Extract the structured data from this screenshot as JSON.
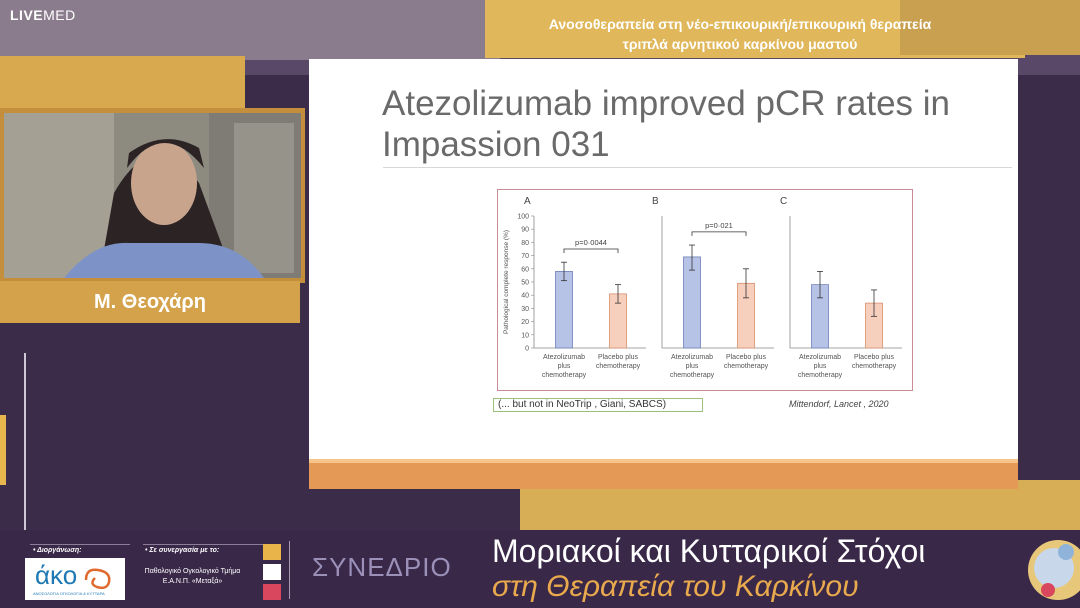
{
  "brand": {
    "live": "LIVE",
    "med": "MED"
  },
  "session_title": {
    "line1": "Ανοσοθεραπεία στη νέο-επικουρική/επικουρική θεραπεία",
    "line2": "τριπλά αρνητικού καρκίνου μαστού"
  },
  "speaker": {
    "name": "Μ. Θεοχάρη"
  },
  "slide": {
    "title": "Atezolizumab improved pCR rates in Impassion 031",
    "note": "(... but not in NeoTrip , Giani, SABCS)",
    "citation": "Mittendorf, Lancet , 2020"
  },
  "chart_data": [
    {
      "type": "bar",
      "panel": "A",
      "categories": [
        "Atezolizumab plus chemotherapy",
        "Placebo plus chemotherapy"
      ],
      "values": [
        58,
        41
      ],
      "error_low": [
        51,
        34
      ],
      "error_high": [
        65,
        48
      ],
      "annotation": "p=0·0044",
      "ylabel": "Pathological complete response (%)",
      "ylim": [
        0,
        100
      ],
      "yticks": [
        0,
        10,
        20,
        30,
        40,
        50,
        60,
        70,
        80,
        90,
        100
      ],
      "colors": [
        "#b7c3e6",
        "#f7cfbd"
      ]
    },
    {
      "type": "bar",
      "panel": "B",
      "categories": [
        "Atezolizumab plus chemotherapy",
        "Placebo plus chemotherapy"
      ],
      "values": [
        69,
        49
      ],
      "error_low": [
        59,
        38
      ],
      "error_high": [
        78,
        60
      ],
      "annotation": "p=0·021",
      "ylim": [
        0,
        100
      ],
      "colors": [
        "#b7c3e6",
        "#f7cfbd"
      ]
    },
    {
      "type": "bar",
      "panel": "C",
      "categories": [
        "Atezolizumab plus chemotherapy",
        "Placebo plus chemotherapy"
      ],
      "values": [
        48,
        34
      ],
      "error_low": [
        38,
        24
      ],
      "error_high": [
        58,
        44
      ],
      "annotation": "",
      "ylim": [
        0,
        100
      ],
      "colors": [
        "#b7c3e6",
        "#f7cfbd"
      ]
    }
  ],
  "footer": {
    "organizer_label": "• Διοργάνωση:",
    "collaboration_label": "• Σε συνεργασία με το:",
    "org_logo_text": "άκο",
    "org_logo_sub": "ΑΝΟΣΟΛΟΓΙΑ ΟΓΚΟΛΟΓΙΑ & ΚΥΤΤΑΡΑ",
    "collab_line1": "Παθολογικό Ογκολογικό Τμήμα",
    "collab_line2": "Ε.Α.Ν.Π. «Μεταξά»",
    "congress_word": "ΣΥΝΕΔΡΙΟ",
    "conf_title_line1": "Μοριακοί και Κυτταρικοί Στόχοι",
    "conf_title_line2": "στη Θεραπεία του Καρκίνου",
    "square_colors": [
      "#e9b54a",
      "#ffffff",
      "#d9475f"
    ]
  }
}
